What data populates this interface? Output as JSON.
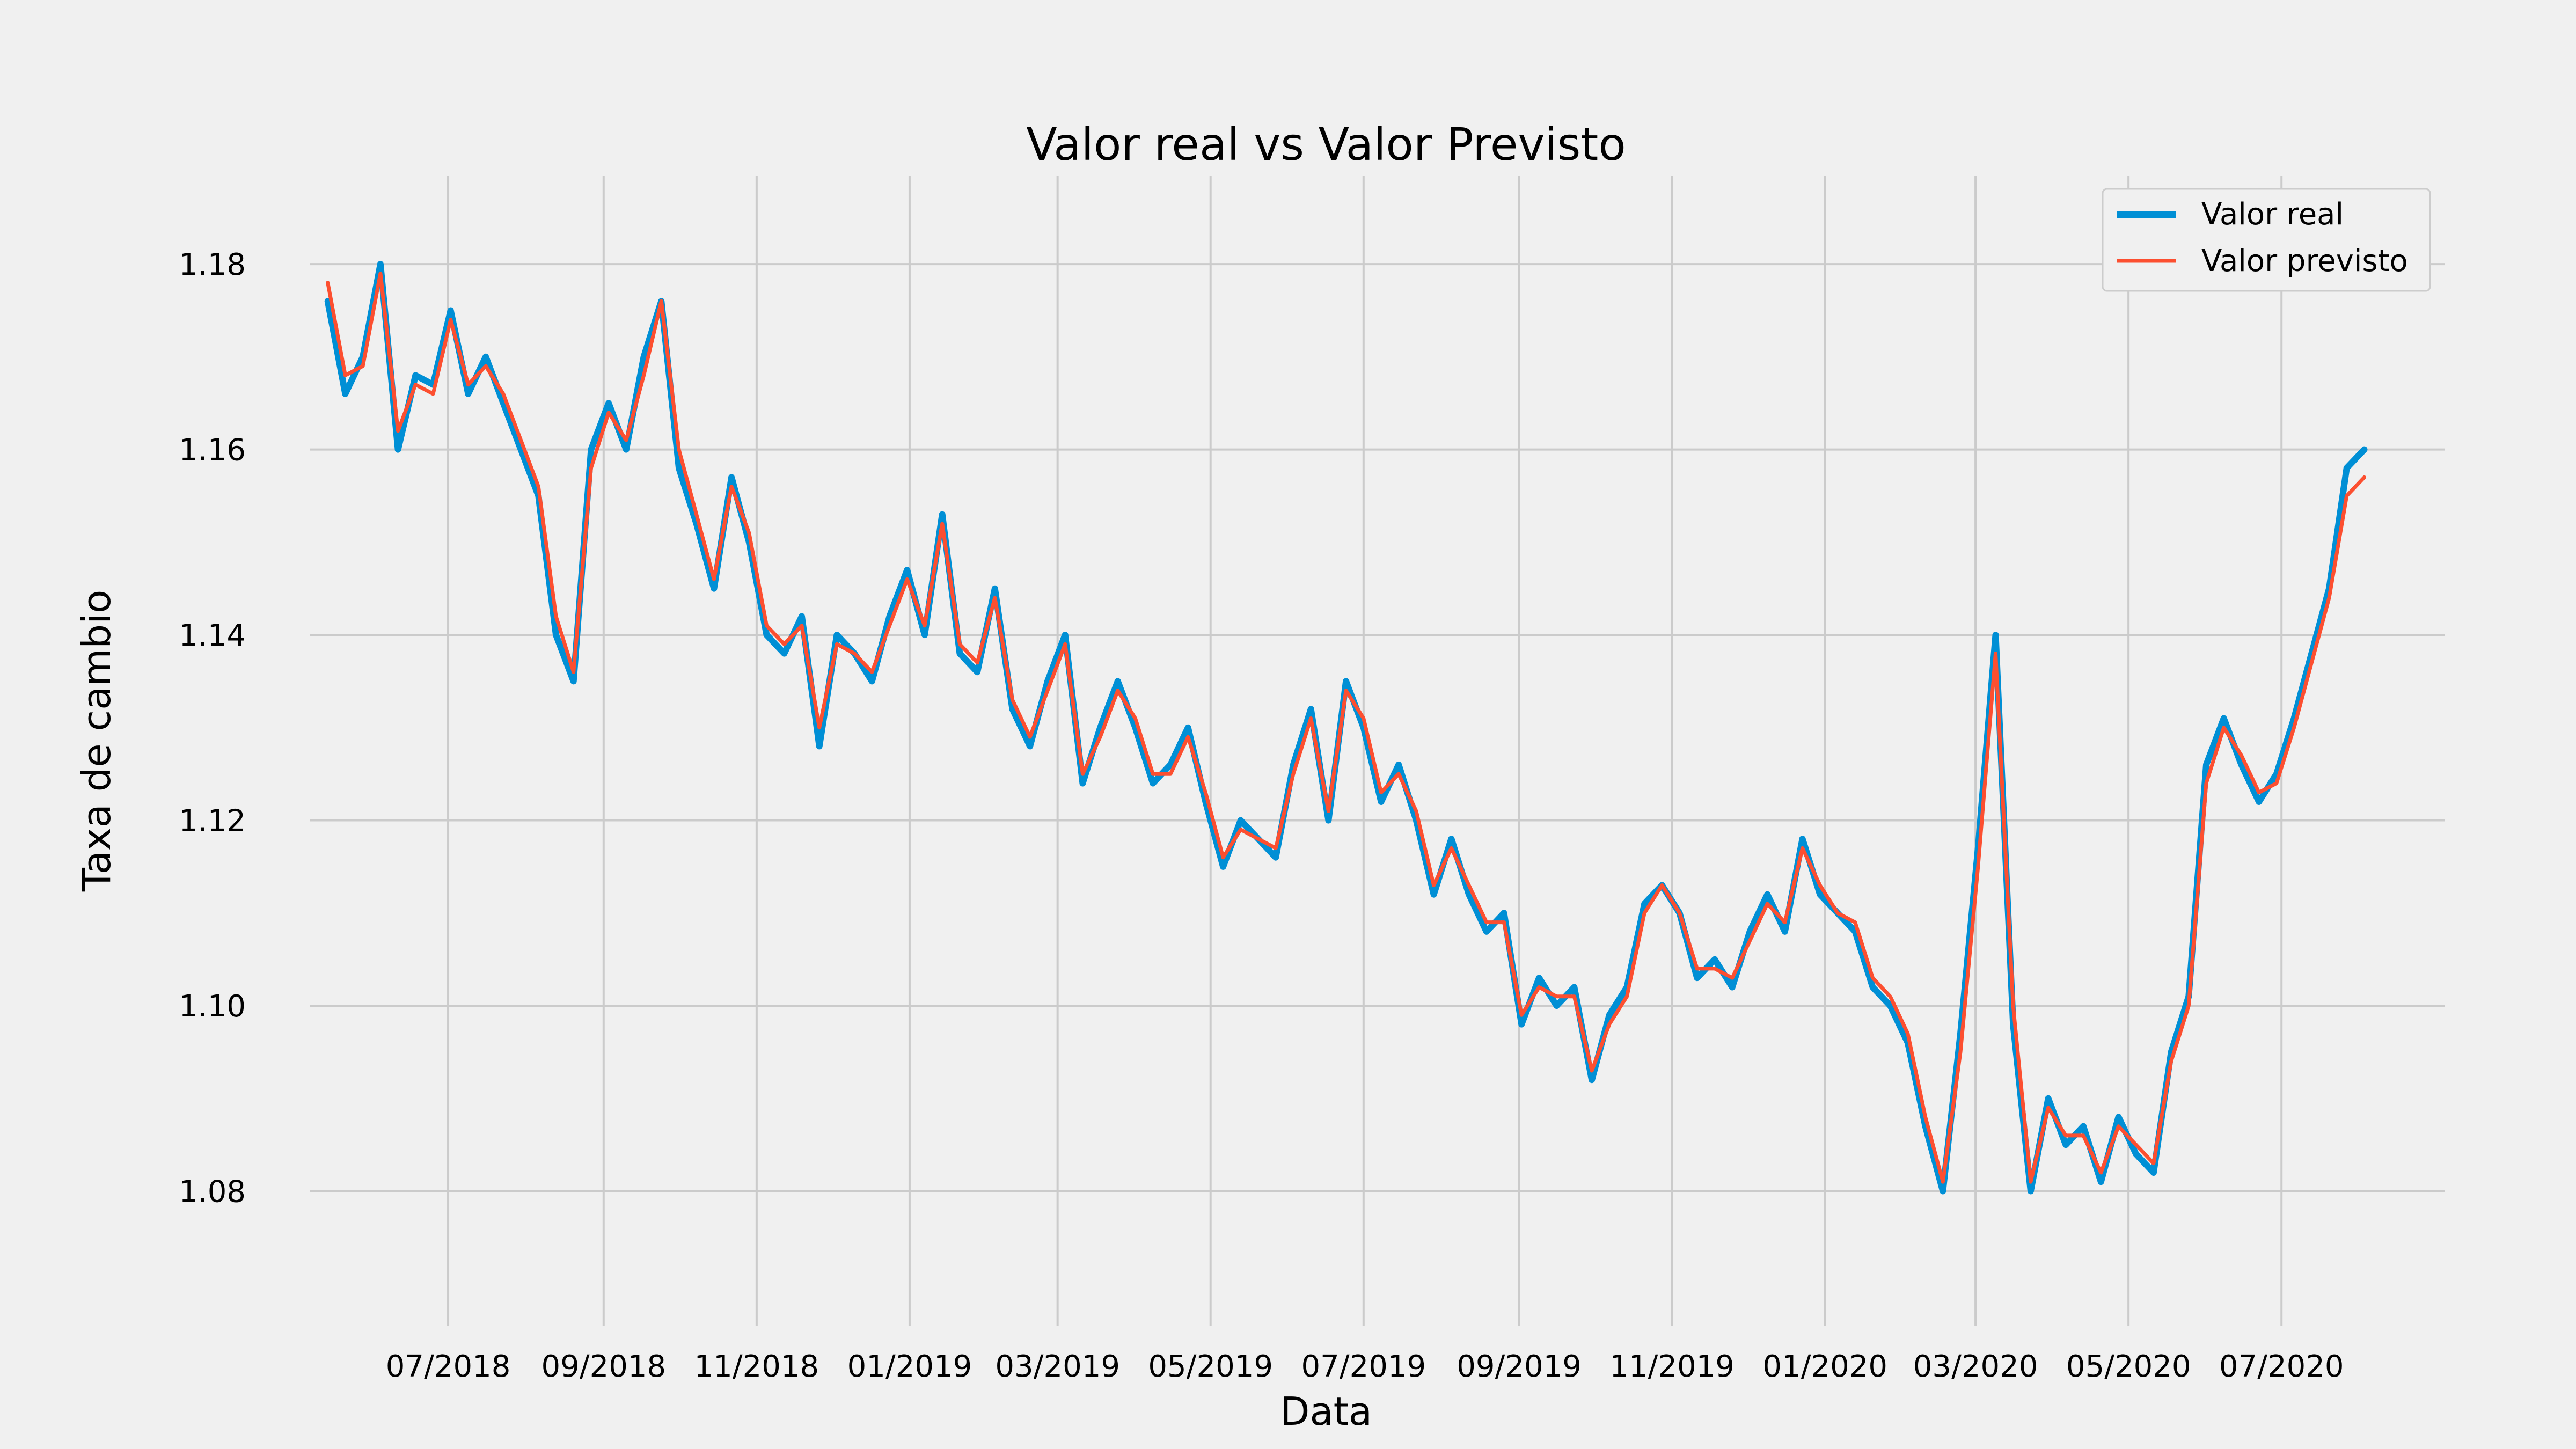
{
  "chart_data": {
    "type": "line",
    "title": "Valor real vs Valor Previsto",
    "xlabel": "Data",
    "ylabel": "Taxa de cambio",
    "x_ticks": [
      "07/2018",
      "09/2018",
      "11/2018",
      "01/2019",
      "03/2019",
      "05/2019",
      "07/2019",
      "09/2019",
      "11/2019",
      "01/2020",
      "03/2020",
      "05/2020",
      "07/2020"
    ],
    "y_ticks": [
      "1.08",
      "1.10",
      "1.12",
      "1.14",
      "1.16",
      "1.18"
    ],
    "xlim": [
      "2018-05-07",
      "2020-09-04"
    ],
    "ylim": [
      1.0655,
      1.1895
    ],
    "grid": true,
    "legend_position": "top-right",
    "colors": {
      "real": "#008fd5",
      "previsto": "#fc4f30",
      "grid": "#cbcbcb",
      "background": "#f0f0f0"
    },
    "series": [
      {
        "name": "Valor real",
        "dates": [
          "2018-05-14",
          "2018-05-21",
          "2018-05-28",
          "2018-06-04",
          "2018-06-11",
          "2018-06-18",
          "2018-06-25",
          "2018-07-02",
          "2018-07-09",
          "2018-07-16",
          "2018-07-23",
          "2018-07-30",
          "2018-08-06",
          "2018-08-13",
          "2018-08-20",
          "2018-08-27",
          "2018-09-03",
          "2018-09-10",
          "2018-09-17",
          "2018-09-24",
          "2018-10-01",
          "2018-10-08",
          "2018-10-15",
          "2018-10-22",
          "2018-10-29",
          "2018-11-05",
          "2018-11-12",
          "2018-11-19",
          "2018-11-26",
          "2018-12-03",
          "2018-12-10",
          "2018-12-17",
          "2018-12-24",
          "2018-12-31",
          "2019-01-07",
          "2019-01-14",
          "2019-01-21",
          "2019-01-28",
          "2019-02-04",
          "2019-02-11",
          "2019-02-18",
          "2019-02-25",
          "2019-03-04",
          "2019-03-11",
          "2019-03-18",
          "2019-03-25",
          "2019-04-01",
          "2019-04-08",
          "2019-04-15",
          "2019-04-22",
          "2019-04-29",
          "2019-05-06",
          "2019-05-13",
          "2019-05-20",
          "2019-05-27",
          "2019-06-03",
          "2019-06-10",
          "2019-06-17",
          "2019-06-24",
          "2019-07-01",
          "2019-07-08",
          "2019-07-15",
          "2019-07-22",
          "2019-07-29",
          "2019-08-05",
          "2019-08-12",
          "2019-08-19",
          "2019-08-26",
          "2019-09-02",
          "2019-09-09",
          "2019-09-16",
          "2019-09-23",
          "2019-09-30",
          "2019-10-07",
          "2019-10-14",
          "2019-10-21",
          "2019-10-28",
          "2019-11-04",
          "2019-11-11",
          "2019-11-18",
          "2019-11-25",
          "2019-12-02",
          "2019-12-09",
          "2019-12-16",
          "2019-12-23",
          "2019-12-30",
          "2020-01-06",
          "2020-01-13",
          "2020-01-20",
          "2020-01-27",
          "2020-02-03",
          "2020-02-10",
          "2020-02-17",
          "2020-02-24",
          "2020-03-02",
          "2020-03-09",
          "2020-03-16",
          "2020-03-23",
          "2020-03-30",
          "2020-04-06",
          "2020-04-13",
          "2020-04-20",
          "2020-04-27",
          "2020-05-04",
          "2020-05-11",
          "2020-05-18",
          "2020-05-25",
          "2020-06-01",
          "2020-06-08",
          "2020-06-15",
          "2020-06-22",
          "2020-06-29",
          "2020-07-06",
          "2020-07-13",
          "2020-07-20",
          "2020-07-27",
          "2020-08-03"
        ],
        "values": [
          1.176,
          1.166,
          1.17,
          1.18,
          1.16,
          1.168,
          1.167,
          1.175,
          1.166,
          1.17,
          1.165,
          1.16,
          1.155,
          1.14,
          1.135,
          1.16,
          1.165,
          1.16,
          1.17,
          1.176,
          1.158,
          1.152,
          1.145,
          1.157,
          1.15,
          1.14,
          1.138,
          1.142,
          1.128,
          1.14,
          1.138,
          1.135,
          1.142,
          1.147,
          1.14,
          1.153,
          1.138,
          1.136,
          1.145,
          1.132,
          1.128,
          1.135,
          1.14,
          1.124,
          1.13,
          1.135,
          1.13,
          1.124,
          1.126,
          1.13,
          1.122,
          1.115,
          1.12,
          1.118,
          1.116,
          1.126,
          1.132,
          1.12,
          1.135,
          1.13,
          1.122,
          1.126,
          1.12,
          1.112,
          1.118,
          1.112,
          1.108,
          1.11,
          1.098,
          1.103,
          1.1,
          1.102,
          1.092,
          1.099,
          1.102,
          1.111,
          1.113,
          1.11,
          1.103,
          1.105,
          1.102,
          1.108,
          1.112,
          1.108,
          1.118,
          1.112,
          1.11,
          1.108,
          1.102,
          1.1,
          1.096,
          1.087,
          1.08,
          1.097,
          1.117,
          1.14,
          1.098,
          1.08,
          1.09,
          1.085,
          1.087,
          1.081,
          1.088,
          1.084,
          1.082,
          1.095,
          1.101,
          1.126,
          1.131,
          1.126,
          1.122,
          1.125,
          1.131,
          1.138,
          1.145,
          1.158,
          1.16
        ]
      },
      {
        "name": "Valor previsto",
        "dates": [
          "2018-05-14",
          "2018-05-21",
          "2018-05-28",
          "2018-06-04",
          "2018-06-11",
          "2018-06-18",
          "2018-06-25",
          "2018-07-02",
          "2018-07-09",
          "2018-07-16",
          "2018-07-23",
          "2018-07-30",
          "2018-08-06",
          "2018-08-13",
          "2018-08-20",
          "2018-08-27",
          "2018-09-03",
          "2018-09-10",
          "2018-09-17",
          "2018-09-24",
          "2018-10-01",
          "2018-10-08",
          "2018-10-15",
          "2018-10-22",
          "2018-10-29",
          "2018-11-05",
          "2018-11-12",
          "2018-11-19",
          "2018-11-26",
          "2018-12-03",
          "2018-12-10",
          "2018-12-17",
          "2018-12-24",
          "2018-12-31",
          "2019-01-07",
          "2019-01-14",
          "2019-01-21",
          "2019-01-28",
          "2019-02-04",
          "2019-02-11",
          "2019-02-18",
          "2019-02-25",
          "2019-03-04",
          "2019-03-11",
          "2019-03-18",
          "2019-03-25",
          "2019-04-01",
          "2019-04-08",
          "2019-04-15",
          "2019-04-22",
          "2019-04-29",
          "2019-05-06",
          "2019-05-13",
          "2019-05-20",
          "2019-05-27",
          "2019-06-03",
          "2019-06-10",
          "2019-06-17",
          "2019-06-24",
          "2019-07-01",
          "2019-07-08",
          "2019-07-15",
          "2019-07-22",
          "2019-07-29",
          "2019-08-05",
          "2019-08-12",
          "2019-08-19",
          "2019-08-26",
          "2019-09-02",
          "2019-09-09",
          "2019-09-16",
          "2019-09-23",
          "2019-09-30",
          "2019-10-07",
          "2019-10-14",
          "2019-10-21",
          "2019-10-28",
          "2019-11-04",
          "2019-11-11",
          "2019-11-18",
          "2019-11-25",
          "2019-12-02",
          "2019-12-09",
          "2019-12-16",
          "2019-12-23",
          "2019-12-30",
          "2020-01-06",
          "2020-01-13",
          "2020-01-20",
          "2020-01-27",
          "2020-02-03",
          "2020-02-10",
          "2020-02-17",
          "2020-02-24",
          "2020-03-02",
          "2020-03-09",
          "2020-03-16",
          "2020-03-23",
          "2020-03-30",
          "2020-04-06",
          "2020-04-13",
          "2020-04-20",
          "2020-04-27",
          "2020-05-04",
          "2020-05-11",
          "2020-05-18",
          "2020-05-25",
          "2020-06-01",
          "2020-06-08",
          "2020-06-15",
          "2020-06-22",
          "2020-06-29",
          "2020-07-06",
          "2020-07-13",
          "2020-07-20",
          "2020-07-27",
          "2020-08-03"
        ],
        "values": [
          1.178,
          1.168,
          1.169,
          1.179,
          1.162,
          1.167,
          1.166,
          1.174,
          1.167,
          1.169,
          1.166,
          1.161,
          1.156,
          1.142,
          1.136,
          1.158,
          1.164,
          1.161,
          1.168,
          1.176,
          1.16,
          1.153,
          1.146,
          1.156,
          1.151,
          1.141,
          1.139,
          1.141,
          1.13,
          1.139,
          1.138,
          1.136,
          1.141,
          1.146,
          1.141,
          1.152,
          1.139,
          1.137,
          1.144,
          1.133,
          1.129,
          1.134,
          1.139,
          1.125,
          1.129,
          1.134,
          1.131,
          1.125,
          1.125,
          1.129,
          1.123,
          1.116,
          1.119,
          1.118,
          1.117,
          1.125,
          1.131,
          1.121,
          1.134,
          1.131,
          1.123,
          1.125,
          1.121,
          1.113,
          1.117,
          1.113,
          1.109,
          1.109,
          1.099,
          1.102,
          1.101,
          1.101,
          1.093,
          1.098,
          1.101,
          1.11,
          1.113,
          1.11,
          1.104,
          1.104,
          1.103,
          1.107,
          1.111,
          1.109,
          1.117,
          1.113,
          1.11,
          1.109,
          1.103,
          1.101,
          1.097,
          1.088,
          1.081,
          1.095,
          1.115,
          1.138,
          1.1,
          1.081,
          1.089,
          1.086,
          1.086,
          1.082,
          1.087,
          1.085,
          1.083,
          1.094,
          1.1,
          1.124,
          1.13,
          1.127,
          1.123,
          1.124,
          1.13,
          1.137,
          1.144,
          1.155,
          1.157
        ]
      }
    ]
  }
}
